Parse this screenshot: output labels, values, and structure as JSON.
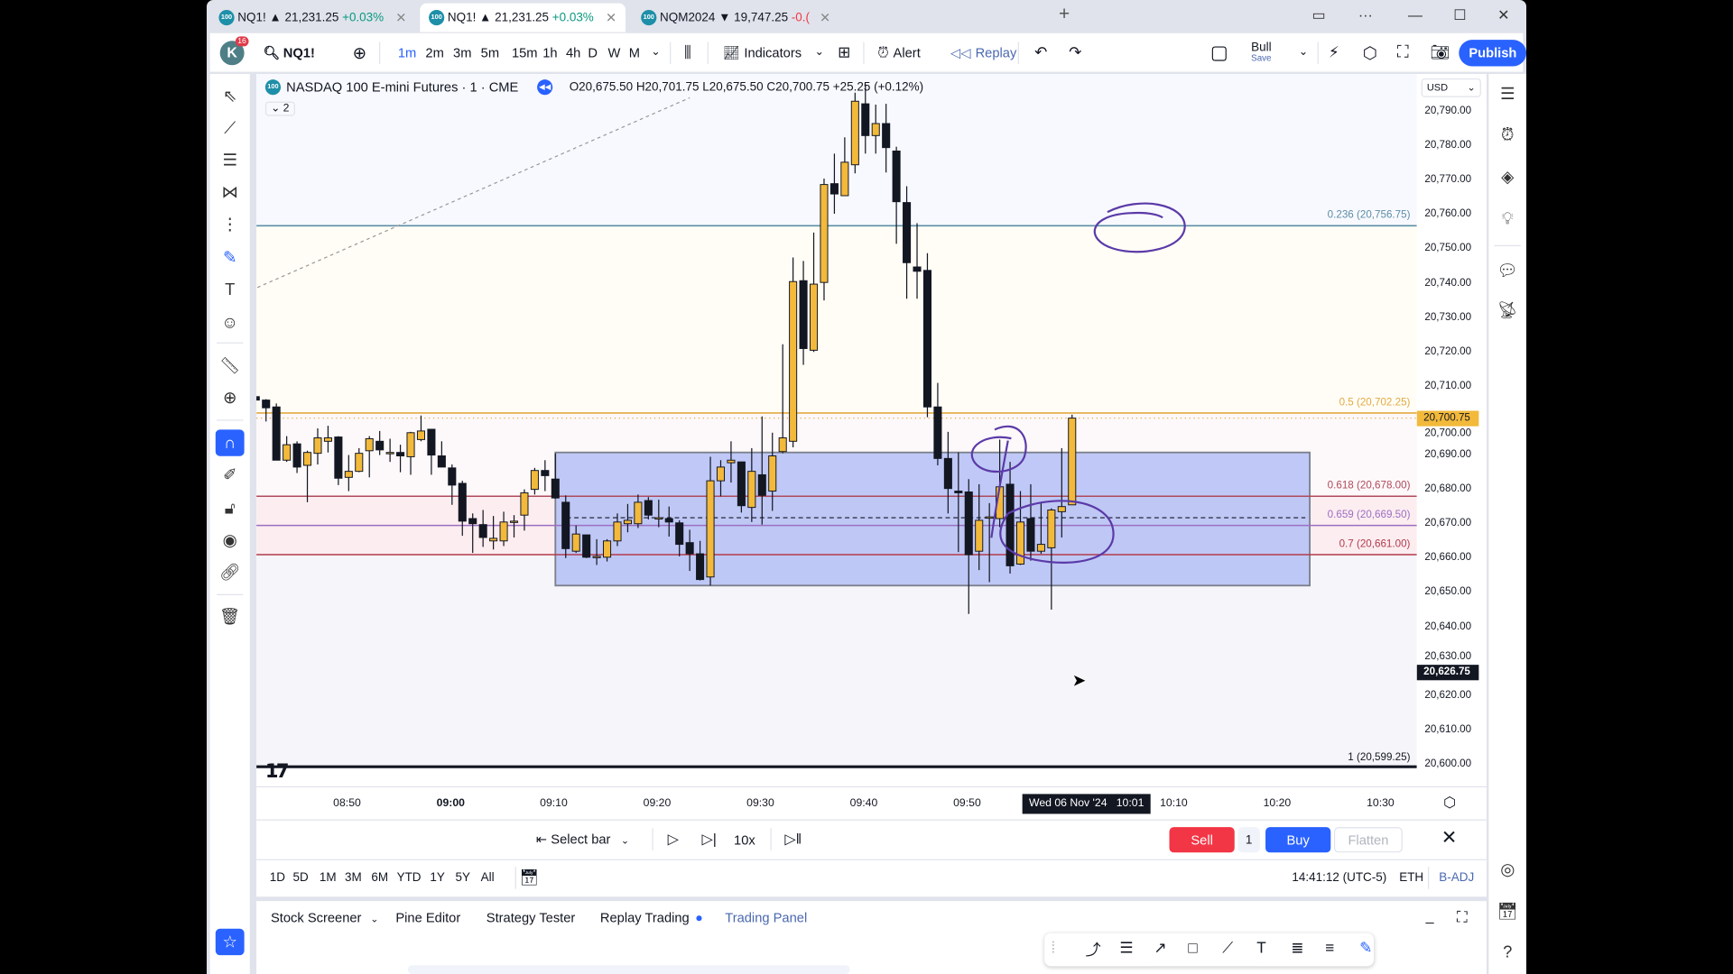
{
  "tabs": [
    {
      "symbol": "NQ1!",
      "price": "▲ 21,231.25",
      "change": "+0.03%",
      "direction": "up",
      "active": false
    },
    {
      "symbol": "NQ1!",
      "price": "▲ 21,231.25",
      "change": "+0.03%",
      "direction": "up",
      "active": true
    },
    {
      "symbol": "NQM2024",
      "price": "▼ 19,747.25",
      "change": "-0.(",
      "direction": "down",
      "active": false
    }
  ],
  "tab_logo": "100",
  "toolbar": {
    "avatar_letter": "K",
    "notification_count": "16",
    "symbol": "NQ1!",
    "intervals": [
      "1m",
      "2m",
      "3m",
      "5m",
      "15m",
      "1h",
      "4h",
      "D",
      "W",
      "M"
    ],
    "active_interval": "1m",
    "indicators_label": "Indicators",
    "alert_label": "Alert",
    "replay_label": "Replay",
    "layout_name": "Bull",
    "layout_save": "Save",
    "publish_label": "Publish"
  },
  "chart_header": {
    "title": "NASDAQ 100 E-mini Futures · 1 · CME",
    "ohlc": "O20,675.50 H20,701.75 L20,675.50 C20,700.75 +25.25 (+0.12%)",
    "collapsed_count": "2"
  },
  "price_axis": {
    "currency": "USD",
    "labels": [
      "20,790.00",
      "20,780.00",
      "20,770.00",
      "20,760.00",
      "20,750.00",
      "20,740.00",
      "20,730.00",
      "20,720.00",
      "20,710.00",
      "20,700.00",
      "20,690.00",
      "20,680.00",
      "20,670.00",
      "20,660.00",
      "20,650.00",
      "20,640.00",
      "20,630.00",
      "20,620.00",
      "20,610.00",
      "20,600.00"
    ],
    "last_price": "20,700.75",
    "cursor_price": "20,626.75"
  },
  "time_axis": {
    "labels": [
      "08:50",
      "09:00",
      "09:10",
      "09:20",
      "09:30",
      "09:40",
      "09:50",
      "10:10",
      "10:20",
      "10:30"
    ],
    "crosshair_date": "Wed 06 Nov '24",
    "crosshair_time": "10:01"
  },
  "chart_data": {
    "type": "candlestick",
    "up_color": "#f2b93b",
    "down_color": "#131722",
    "ylim": [
      20596,
      20800
    ],
    "candles": [
      [
        "08:41",
        20707,
        20711,
        20702,
        20706
      ],
      [
        "08:42",
        20706,
        20706.25,
        20699.75,
        20703.75
      ],
      [
        "08:43",
        20704,
        20705,
        20688.5,
        20688.5
      ],
      [
        "08:44",
        20688.5,
        20695.5,
        20688,
        20693
      ],
      [
        "08:45",
        20693.25,
        20694,
        20684.75,
        20686.5
      ],
      [
        "08:46",
        20687,
        20691.25,
        20676.25,
        20690.75
      ],
      [
        "08:47",
        20690.5,
        20697.75,
        20687.25,
        20695
      ],
      [
        "08:48",
        20694,
        20698.5,
        20690.75,
        20695
      ],
      [
        "08:49",
        20695.25,
        20695.5,
        20681.25,
        20683.25
      ],
      [
        "08:50",
        20683.5,
        20690,
        20679.5,
        20685.25
      ],
      [
        "08:51",
        20685.25,
        20692,
        20685,
        20690.5
      ],
      [
        "08:52",
        20691.25,
        20695.5,
        20683.5,
        20694.75
      ],
      [
        "08:53",
        20694,
        20697,
        20690,
        20691.5
      ],
      [
        "08:54",
        20690.75,
        20694.75,
        20688,
        20690.75
      ],
      [
        "08:55",
        20690.75,
        20693,
        20685,
        20689.75
      ],
      [
        "08:56",
        20689.5,
        20696.75,
        20684.25,
        20696.5
      ],
      [
        "08:57",
        20694.5,
        20701.5,
        20694,
        20697
      ],
      [
        "08:58",
        20697.5,
        20697.5,
        20684.25,
        20690
      ],
      [
        "08:59",
        20689.75,
        20694,
        20686.5,
        20686.5
      ],
      [
        "09:00",
        20686.25,
        20687.25,
        20675.5,
        20681.25
      ],
      [
        "09:01",
        20681.75,
        20682.5,
        20666.5,
        20670.75
      ],
      [
        "09:02",
        20671.5,
        20673,
        20661.5,
        20670
      ],
      [
        "09:03",
        20669.75,
        20674,
        20663.25,
        20666
      ],
      [
        "09:04",
        20665,
        20672.25,
        20662.5,
        20665.75
      ],
      [
        "09:05",
        20665,
        20673.5,
        20663.5,
        20670.5
      ],
      [
        "09:06",
        20670.75,
        20672.5,
        20666,
        20670.75
      ],
      [
        "09:07",
        20672.5,
        20680,
        20668,
        20679
      ],
      [
        "09:08",
        20680,
        20686.25,
        20678.5,
        20685.5
      ],
      [
        "09:09",
        20685.5,
        20688.5,
        20679.5,
        20684
      ],
      [
        "09:10",
        20683,
        20690.5,
        20677.25,
        20677.5
      ],
      [
        "09:11",
        20676.25,
        20678.25,
        20660,
        20662.75
      ],
      [
        "09:12",
        20662,
        20669.5,
        20661.5,
        20667
      ],
      [
        "09:13",
        20666.75,
        20666.75,
        20660,
        20660.25
      ],
      [
        "09:14",
        20660.5,
        20665.5,
        20658,
        20660.5
      ],
      [
        "09:15",
        20660.25,
        20665.5,
        20659,
        20665
      ],
      [
        "09:16",
        20665,
        20673,
        20663.5,
        20670.5
      ],
      [
        "09:17",
        20670,
        20675.75,
        20667.5,
        20671
      ],
      [
        "09:18",
        20670,
        20678.5,
        20668.75,
        20676.25
      ],
      [
        "09:19",
        20676.75,
        20677.75,
        20671.25,
        20672.5
      ],
      [
        "09:20",
        20671.75,
        20677,
        20669,
        20671.75
      ],
      [
        "09:21",
        20671.5,
        20675,
        20666.25,
        20670.5
      ],
      [
        "09:22",
        20670.25,
        20671,
        20660.5,
        20664
      ],
      [
        "09:23",
        20664.5,
        20668.25,
        20656.25,
        20661.25
      ],
      [
        "09:24",
        20661.25,
        20665,
        20653.5,
        20653.75
      ],
      [
        "09:25",
        20654.5,
        20689.5,
        20652,
        20682.5
      ],
      [
        "09:26",
        20682.5,
        20688.5,
        20678,
        20686.5
      ],
      [
        "09:27",
        20687.75,
        20694,
        20682,
        20688.5
      ],
      [
        "09:28",
        20688,
        20688,
        20673.25,
        20675.25
      ],
      [
        "09:29",
        20674.75,
        20692,
        20670.5,
        20685.25
      ],
      [
        "09:30",
        20684.25,
        20701.25,
        20669.75,
        20678.25
      ],
      [
        "09:31",
        20679.5,
        20696.5,
        20673.75,
        20689.75
      ],
      [
        "09:32",
        20691,
        20722.25,
        20690.5,
        20695
      ],
      [
        "09:33",
        20694,
        20747.5,
        20692.25,
        20740.5
      ],
      [
        "09:34",
        20740.75,
        20746.5,
        20716.25,
        20721
      ],
      [
        "09:35",
        20720.5,
        20754.75,
        20720,
        20739.75
      ],
      [
        "09:36",
        20740.25,
        20770.5,
        20735,
        20768.75
      ],
      [
        "09:37",
        20769,
        20777.75,
        20760.25,
        20766
      ],
      [
        "09:38",
        20765.5,
        20782.5,
        20765.5,
        20775.25
      ],
      [
        "09:39",
        20774.5,
        20795.5,
        20772,
        20793
      ],
      [
        "09:40",
        20792.25,
        20798,
        20777.75,
        20783
      ],
      [
        "09:41",
        20783,
        20792,
        20777.75,
        20786.5
      ],
      [
        "09:42",
        20786.5,
        20792.25,
        20772.25,
        20779.5
      ],
      [
        "09:43",
        20778.5,
        20779.75,
        20751.5,
        20763.75
      ],
      [
        "09:44",
        20763.5,
        20768.25,
        20735.5,
        20746
      ],
      [
        "09:45",
        20744.75,
        20757.5,
        20735.5,
        20743.5
      ],
      [
        "09:46",
        20743.75,
        20748.75,
        20701,
        20704
      ],
      [
        "09:47",
        20704,
        20711,
        20687,
        20689
      ],
      [
        "09:48",
        20689,
        20696.75,
        20673,
        20680.25
      ],
      [
        "09:49",
        20679.5,
        20690.75,
        20661.75,
        20679
      ],
      [
        "09:50",
        20679.25,
        20683,
        20643.75,
        20661
      ],
      [
        "09:51",
        20662,
        20681.5,
        20656.5,
        20671
      ],
      [
        "09:52",
        20672,
        20676,
        20653,
        20672
      ],
      [
        "09:53",
        20671.5,
        20694.5,
        20669,
        20680.75
      ],
      [
        "09:54",
        20681.5,
        20688,
        20655.5,
        20657.75
      ],
      [
        "09:55",
        20658.25,
        20679.5,
        20658,
        20670.5
      ],
      [
        "09:56",
        20671.5,
        20681.5,
        20659.25,
        20662
      ],
      [
        "09:57",
        20662,
        20676,
        20661.25,
        20664
      ],
      [
        "09:58",
        20663,
        20674.5,
        20645,
        20674
      ],
      [
        "09:59",
        20673.5,
        20692,
        20666,
        20675
      ],
      [
        "10:00",
        20675.5,
        20701.75,
        20675.5,
        20700.75
      ]
    ],
    "fib_levels": [
      {
        "label": "0.236 (20,756.75)",
        "price": 20756.75,
        "color": "#5d8ea6"
      },
      {
        "label": "0.5 (20,702.25)",
        "price": 20702.25,
        "color": "#e3aa43"
      },
      {
        "label": "0.618 (20,678.00)",
        "price": 20678.0,
        "color": "#b04a5c"
      },
      {
        "label": "0.659 (20,669.50)",
        "price": 20669.5,
        "color": "#9b6ec3"
      },
      {
        "label": "0.7 (20,661.00)",
        "price": 20661.0,
        "color": "#b23b4c"
      },
      {
        "label": "1 (20,599.25)",
        "price": 20599.25,
        "color": "#131722"
      }
    ],
    "rectangle": {
      "time_start": "09:10",
      "time_end": "10:23",
      "price_top": 20690.75,
      "price_bottom": 20652,
      "fill": "#b4c0f6",
      "border": "#7b808c"
    },
    "dashed_level": {
      "price": 20671.75,
      "time_start": "09:10",
      "time_end": "10:23"
    },
    "trend_line": {
      "start": [
        "08:41",
        20738
      ],
      "end": [
        "09:23",
        20794
      ]
    },
    "drawing_color": "#5b3aa8"
  },
  "replay_bar": {
    "select_bar": "Select bar",
    "speed": "10x",
    "sell": "Sell",
    "quantity": "1",
    "buy": "Buy",
    "flatten": "Flatten"
  },
  "range_bar": {
    "ranges": [
      "1D",
      "5D",
      "1M",
      "3M",
      "6M",
      "YTD",
      "1Y",
      "5Y",
      "All"
    ],
    "clock": "14:41:12 (UTC-5)",
    "session": "ETH",
    "adjustment": "B-ADJ"
  },
  "bottom_tabs": [
    {
      "label": "Stock Screener",
      "dropdown": true
    },
    {
      "label": "Pine Editor"
    },
    {
      "label": "Strategy Tester"
    },
    {
      "label": "Replay Trading",
      "dot": true
    },
    {
      "label": "Trading Panel",
      "active": true
    }
  ],
  "left_tools": [
    "cursor-icon",
    "trend-line-icon",
    "fib-retracement-icon",
    "xabcd-pattern-icon",
    "pitchfork-icon",
    "brush-icon",
    "text-icon",
    "emoji-icon",
    "ruler-icon",
    "zoom-in-icon",
    "magnet-icon",
    "lock-drawing-icon",
    "lock-icon",
    "eye-icon",
    "link-icon",
    "trash-icon",
    "star-icon"
  ],
  "right_tools": [
    "watchlist-icon",
    "alarm-icon",
    "layers-icon",
    "idea-icon",
    "chat-icon",
    "broadcast-icon",
    "target-icon",
    "calendar-icon",
    "help-icon"
  ],
  "floating_tools": [
    "drag-handle-icon",
    "path-icon",
    "fib-lines-icon",
    "arrow-icon",
    "rectangle-icon",
    "line-icon",
    "text-icon",
    "fib-channel-icon",
    "fib-fan-icon",
    "brush-icon"
  ]
}
